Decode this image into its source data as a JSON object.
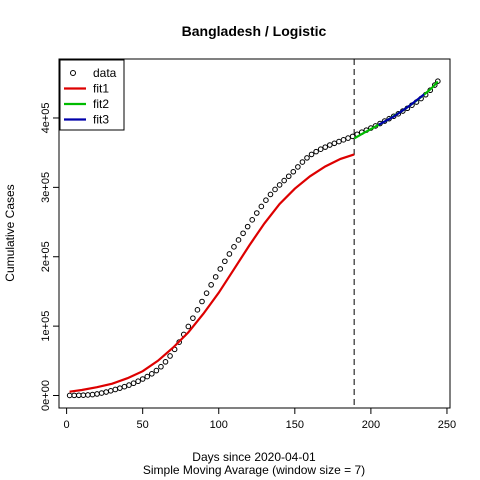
{
  "chart_data": {
    "type": "scatter",
    "title": "Bangladesh / Logistic",
    "xlabel": "Days since 2020-04-01",
    "subtitle": "Simple Moving Avarage (window size = 7)",
    "ylabel": "Cumulative Cases",
    "xlim": [
      -5,
      252
    ],
    "ylim": [
      -18000,
      485000
    ],
    "x_ticks": [
      0,
      50,
      100,
      150,
      200,
      250
    ],
    "x_tick_labels": [
      "0",
      "50",
      "100",
      "150",
      "200",
      "250"
    ],
    "y_ticks": [
      0,
      100000,
      200000,
      300000,
      400000
    ],
    "y_tick_labels": [
      "0e+00",
      "1e+05",
      "2e+05",
      "3e+05",
      "4e+05"
    ],
    "split_x": 189,
    "legend": {
      "placement": "top-left",
      "entries": [
        {
          "label": "data",
          "kind": "point",
          "color": "#000000"
        },
        {
          "label": "fit1",
          "kind": "line",
          "color": "#dd0000"
        },
        {
          "label": "fit2",
          "kind": "line",
          "color": "#00bb00"
        },
        {
          "label": "fit3",
          "kind": "line",
          "color": "#0000aa"
        }
      ]
    },
    "series": [
      {
        "name": "data",
        "kind": "points",
        "color": "#000000",
        "x": [
          2,
          5,
          8,
          11,
          14,
          17,
          20,
          23,
          26,
          29,
          32,
          35,
          38,
          41,
          44,
          47,
          50,
          53,
          56,
          59,
          62,
          65,
          68,
          71,
          74,
          77,
          80,
          83,
          86,
          89,
          92,
          95,
          98,
          101,
          104,
          107,
          110,
          113,
          116,
          119,
          122,
          125,
          128,
          131,
          134,
          137,
          140,
          143,
          146,
          149,
          152,
          155,
          158,
          161,
          164,
          167,
          170,
          173,
          176,
          179,
          182,
          185,
          188,
          191,
          194,
          197,
          200,
          203,
          206,
          209,
          212,
          215,
          218,
          221,
          224,
          227,
          230,
          233,
          236,
          239,
          242,
          244
        ],
        "y": [
          100,
          200,
          350,
          500,
          800,
          1300,
          2200,
          3500,
          5000,
          6800,
          8700,
          10600,
          12700,
          15000,
          17700,
          20600,
          23800,
          27300,
          31300,
          35900,
          41500,
          48500,
          57000,
          66500,
          77000,
          88000,
          99500,
          111500,
          123500,
          135500,
          147500,
          159500,
          171000,
          182500,
          193500,
          204000,
          214300,
          224200,
          233800,
          243400,
          253200,
          263000,
          272500,
          281500,
          289800,
          297000,
          303500,
          309800,
          316000,
          322500,
          329500,
          336500,
          342500,
          347500,
          351500,
          355000,
          358000,
          361000,
          363500,
          366000,
          368500,
          371000,
          373500,
          376500,
          379500,
          382500,
          385500,
          388500,
          392000,
          395500,
          399000,
          402500,
          406000,
          410000,
          414000,
          418500,
          423000,
          428000,
          433500,
          440000,
          447500,
          453000
        ]
      },
      {
        "name": "fit1",
        "kind": "line",
        "color": "#dd0000",
        "x": [
          2,
          10,
          20,
          30,
          40,
          50,
          60,
          70,
          80,
          90,
          100,
          110,
          120,
          130,
          140,
          150,
          160,
          170,
          180,
          189
        ],
        "y": [
          5500,
          8000,
          12000,
          17000,
          25000,
          35000,
          50000,
          69000,
          91000,
          118000,
          148000,
          182000,
          216000,
          248000,
          276000,
          298000,
          316000,
          330000,
          341000,
          347500
        ]
      },
      {
        "name": "fit2",
        "kind": "line",
        "color": "#00bb00",
        "x": [
          189,
          195,
          200,
          205,
          210,
          215,
          220,
          225,
          230,
          235,
          240,
          244
        ],
        "y": [
          370500,
          378000,
          384000,
          390000,
          396000,
          402500,
          409500,
          417000,
          425000,
          433500,
          443000,
          452500
        ]
      },
      {
        "name": "fit3",
        "kind": "line",
        "color": "#0000aa",
        "x": [
          205,
          215,
          225,
          235
        ],
        "y": [
          390000,
          402000,
          417000,
          434000
        ]
      }
    ]
  }
}
